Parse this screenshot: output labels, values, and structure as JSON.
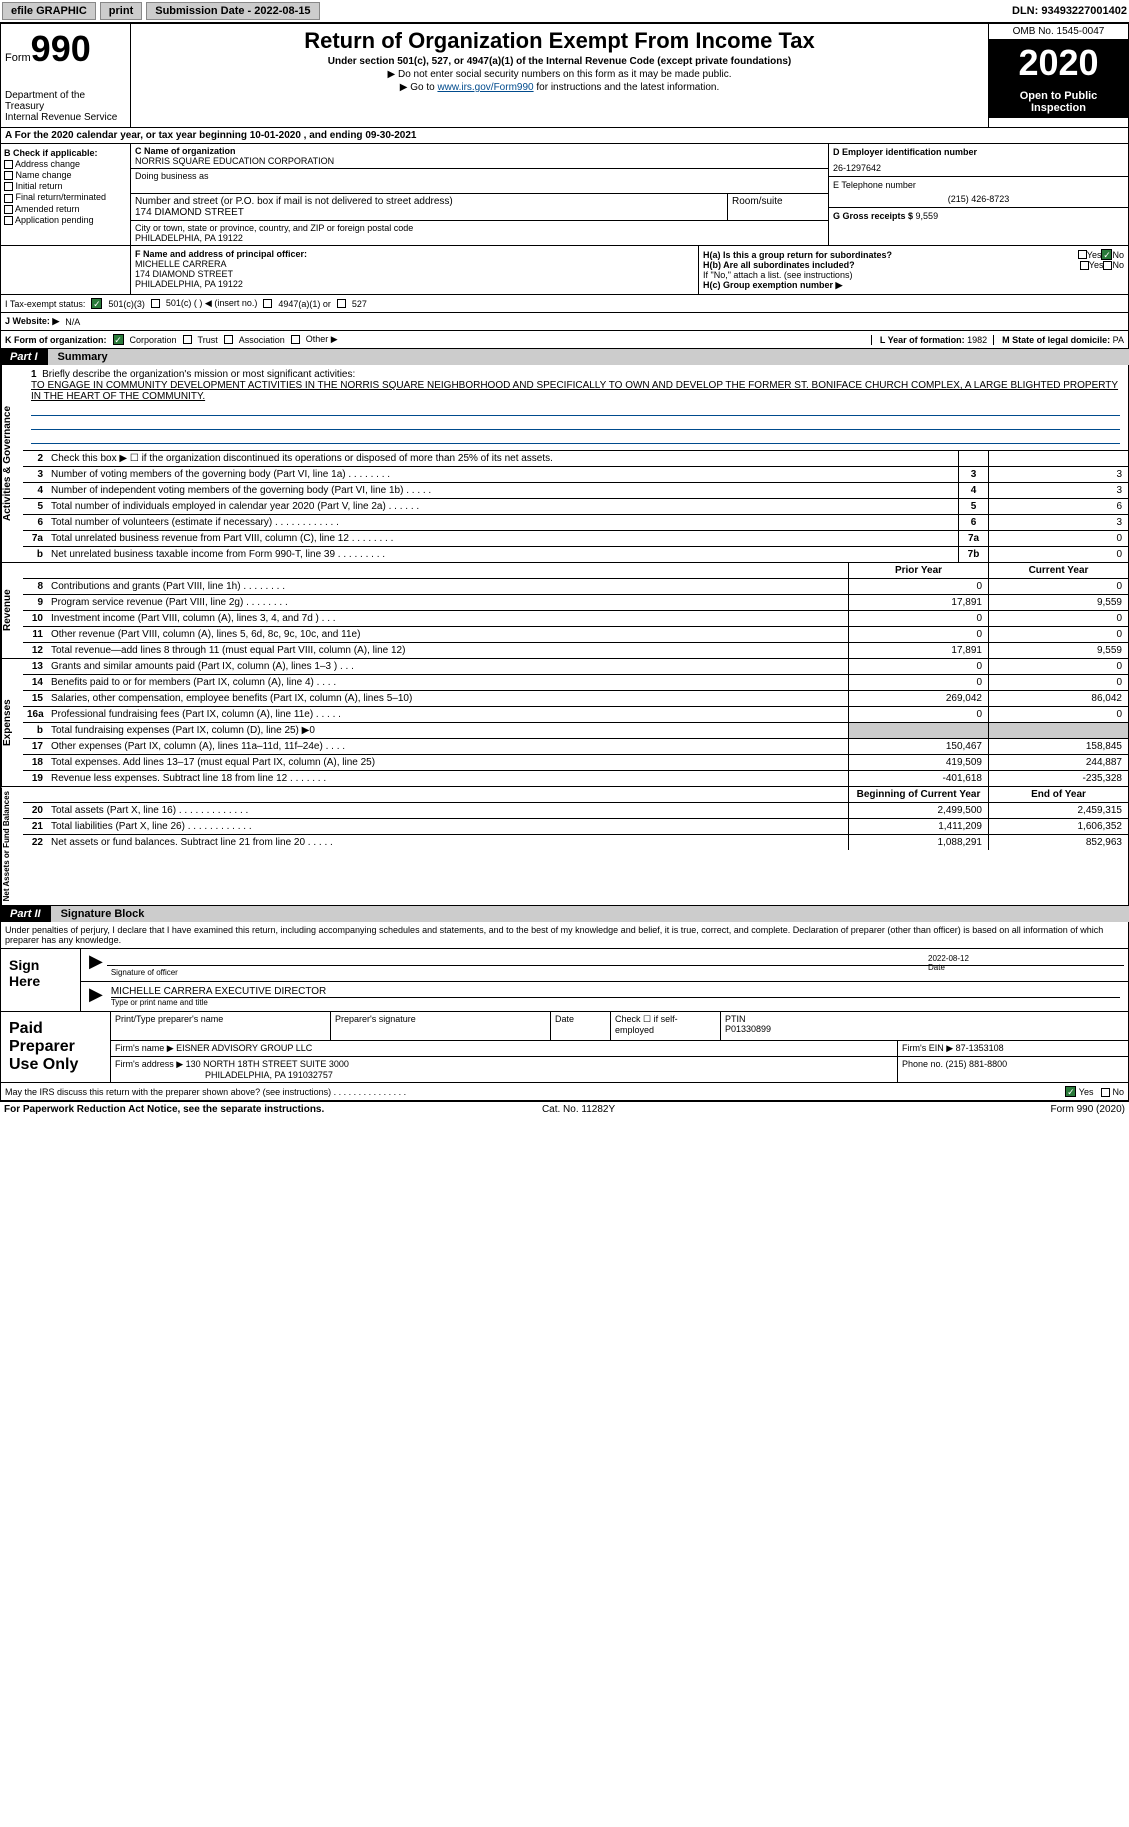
{
  "topbar": {
    "efile": "efile GRAPHIC",
    "print": "print",
    "subdate_label": "Submission Date - ",
    "subdate": "2022-08-15",
    "dln": "DLN: 93493227001402"
  },
  "header": {
    "form_label": "Form",
    "form_num": "990",
    "dept1": "Department of the Treasury",
    "dept2": "Internal Revenue Service",
    "title": "Return of Organization Exempt From Income Tax",
    "sub": "Under section 501(c), 527, or 4947(a)(1) of the Internal Revenue Code (except private foundations)",
    "note1": "▶ Do not enter social security numbers on this form as it may be made public.",
    "note2_pre": "▶ Go to ",
    "note2_link": "www.irs.gov/Form990",
    "note2_post": " for instructions and the latest information.",
    "omb": "OMB No. 1545-0047",
    "year": "2020",
    "open": "Open to Public Inspection"
  },
  "period": {
    "text": "A For the 2020 calendar year, or tax year beginning 10-01-2020    , and ending 09-30-2021"
  },
  "boxB": {
    "label": "B Check if applicable:",
    "o1": "Address change",
    "o2": "Name change",
    "o3": "Initial return",
    "o4": "Final return/terminated",
    "o5": "Amended return",
    "o6": "Application pending"
  },
  "boxC": {
    "name_label": "C Name of organization",
    "name": "NORRIS SQUARE EDUCATION CORPORATION",
    "dba_label": "Doing business as",
    "addr_label": "Number and street (or P.O. box if mail is not delivered to street address)",
    "room_label": "Room/suite",
    "addr": "174 DIAMOND STREET",
    "city_label": "City or town, state or province, country, and ZIP or foreign postal code",
    "city": "PHILADELPHIA, PA  19122"
  },
  "boxD": {
    "ein_label": "D Employer identification number",
    "ein": "26-1297642",
    "phone_label": "E Telephone number",
    "phone": "(215) 426-8723",
    "gross_label": "G Gross receipts $ ",
    "gross": "9,559"
  },
  "boxF": {
    "label": "F  Name and address of principal officer:",
    "name": "MICHELLE CARRERA",
    "addr1": "174 DIAMOND STREET",
    "addr2": "PHILADELPHIA, PA  19122"
  },
  "boxH": {
    "ha": "H(a)  Is this a group return for subordinates?",
    "hb": "H(b)  Are all subordinates included?",
    "hb_note": "If \"No,\" attach a list. (see instructions)",
    "hc": "H(c)  Group exemption number ▶",
    "yes": "Yes",
    "no": "No"
  },
  "rowI": {
    "label": "I   Tax-exempt status:",
    "o1": "501(c)(3)",
    "o2": "501(c) (  ) ◀ (insert no.)",
    "o3": "4947(a)(1) or",
    "o4": "527"
  },
  "rowJ": {
    "label": "J   Website: ▶",
    "val": "N/A"
  },
  "rowK": {
    "label": "K Form of organization:",
    "o1": "Corporation",
    "o2": "Trust",
    "o3": "Association",
    "o4": "Other ▶",
    "l_label": "L Year of formation: ",
    "l_val": "1982",
    "m_label": "M State of legal domicile: ",
    "m_val": "PA"
  },
  "part1": {
    "num": "Part I",
    "title": "Summary"
  },
  "mission": {
    "n": "1",
    "label": "Briefly describe the organization's mission or most significant activities:",
    "text": "TO ENGAGE IN COMMUNITY DEVELOPMENT ACTIVITIES IN THE NORRIS SQUARE NEIGHBORHOOD AND SPECIFICALLY TO OWN AND DEVELOP THE FORMER ST. BONIFACE CHURCH COMPLEX, A LARGE BLIGHTED PROPERTY IN THE HEART OF THE COMMUNITY."
  },
  "gov": {
    "side": "Activities & Governance",
    "rows": [
      {
        "n": "2",
        "d": "Check this box ▶ ☐  if the organization discontinued its operations or disposed of more than 25% of its net assets.",
        "bx": "",
        "v": ""
      },
      {
        "n": "3",
        "d": "Number of voting members of the governing body (Part VI, line 1a)   .    .    .    .    .    .    .    .",
        "bx": "3",
        "v": "3"
      },
      {
        "n": "4",
        "d": "Number of independent voting members of the governing body (Part VI, line 1b)   .    .    .    .    .",
        "bx": "4",
        "v": "3"
      },
      {
        "n": "5",
        "d": "Total number of individuals employed in calendar year 2020 (Part V, line 2a)   .    .    .    .    .    .",
        "bx": "5",
        "v": "6"
      },
      {
        "n": "6",
        "d": "Total number of volunteers (estimate if necessary)   .    .    .    .    .    .    .    .    .    .    .    .",
        "bx": "6",
        "v": "3"
      },
      {
        "n": "7a",
        "d": "Total unrelated business revenue from Part VIII, column (C), line 12   .    .    .    .    .    .    .    .",
        "bx": "7a",
        "v": "0"
      },
      {
        "n": "b",
        "d": "Net unrelated business taxable income from Form 990-T, line 39   .    .    .    .    .    .    .    .    .",
        "bx": "7b",
        "v": "0"
      }
    ]
  },
  "cols": {
    "py": "Prior Year",
    "cy": "Current Year",
    "boy": "Beginning of Current Year",
    "eoy": "End of Year"
  },
  "rev": {
    "side": "Revenue",
    "rows": [
      {
        "n": "8",
        "d": "Contributions and grants (Part VIII, line 1h)   .    .    .    .    .    .    .    .",
        "py": "0",
        "cy": "0"
      },
      {
        "n": "9",
        "d": "Program service revenue (Part VIII, line 2g)   .    .    .    .    .    .    .    .",
        "py": "17,891",
        "cy": "9,559"
      },
      {
        "n": "10",
        "d": "Investment income (Part VIII, column (A), lines 3, 4, and 7d )   .    .    .",
        "py": "0",
        "cy": "0"
      },
      {
        "n": "11",
        "d": "Other revenue (Part VIII, column (A), lines 5, 6d, 8c, 9c, 10c, and 11e)",
        "py": "0",
        "cy": "0"
      },
      {
        "n": "12",
        "d": "Total revenue—add lines 8 through 11 (must equal Part VIII, column (A), line 12)",
        "py": "17,891",
        "cy": "9,559"
      }
    ]
  },
  "exp": {
    "side": "Expenses",
    "rows": [
      {
        "n": "13",
        "d": "Grants and similar amounts paid (Part IX, column (A), lines 1–3 )   .    .    .",
        "py": "0",
        "cy": "0"
      },
      {
        "n": "14",
        "d": "Benefits paid to or for members (Part IX, column (A), line 4)   .    .    .    .",
        "py": "0",
        "cy": "0"
      },
      {
        "n": "15",
        "d": "Salaries, other compensation, employee benefits (Part IX, column (A), lines 5–10)",
        "py": "269,042",
        "cy": "86,042"
      },
      {
        "n": "16a",
        "d": "Professional fundraising fees (Part IX, column (A), line 11e)   .    .    .    .    .",
        "py": "0",
        "cy": "0"
      },
      {
        "n": "b",
        "d": "Total fundraising expenses (Part IX, column (D), line 25) ▶0",
        "py": "grey",
        "cy": "grey"
      },
      {
        "n": "17",
        "d": "Other expenses (Part IX, column (A), lines 11a–11d, 11f–24e)   .    .    .    .",
        "py": "150,467",
        "cy": "158,845"
      },
      {
        "n": "18",
        "d": "Total expenses. Add lines 13–17 (must equal Part IX, column (A), line 25)",
        "py": "419,509",
        "cy": "244,887"
      },
      {
        "n": "19",
        "d": "Revenue less expenses. Subtract line 18 from line 12   .    .    .    .    .    .    .",
        "py": "-401,618",
        "cy": "-235,328"
      }
    ]
  },
  "net": {
    "side": "Net Assets or Fund Balances",
    "rows": [
      {
        "n": "20",
        "d": "Total assets (Part X, line 16)   .    .    .    .    .    .    .    .    .    .    .    .    .",
        "py": "2,499,500",
        "cy": "2,459,315"
      },
      {
        "n": "21",
        "d": "Total liabilities (Part X, line 26)   .    .    .    .    .    .    .    .    .    .    .    .",
        "py": "1,411,209",
        "cy": "1,606,352"
      },
      {
        "n": "22",
        "d": "Net assets or fund balances. Subtract line 21 from line 20   .    .    .    .    .",
        "py": "1,088,291",
        "cy": "852,963"
      }
    ]
  },
  "part2": {
    "num": "Part II",
    "title": "Signature Block"
  },
  "penalties": "Under penalties of perjury, I declare that I have examined this return, including accompanying schedules and statements, and to the best of my knowledge and belief, it is true, correct, and complete. Declaration of preparer (other than officer) is based on all information of which preparer has any knowledge.",
  "sign": {
    "here": "Sign Here",
    "sig_label": "Signature of officer",
    "date_label": "Date",
    "date": "2022-08-12",
    "name": "MICHELLE CARRERA  EXECUTIVE DIRECTOR",
    "name_label": "Type or print name and title"
  },
  "prep": {
    "label": "Paid Preparer Use Only",
    "c1": "Print/Type preparer's name",
    "c2": "Preparer's signature",
    "c3": "Date",
    "c4": "Check ☐ if self-employed",
    "c5l": "PTIN",
    "c5": "P01330899",
    "firm_l": "Firm's name    ▶ ",
    "firm": "EISNER ADVISORY GROUP LLC",
    "ein_l": "Firm's EIN ▶ ",
    "ein": "87-1353108",
    "addr_l": "Firm's address ▶ ",
    "addr1": "130 NORTH 18TH STREET SUITE 3000",
    "addr2": "PHILADELPHIA, PA  191032757",
    "phone_l": "Phone no. ",
    "phone": "(215) 881-8800"
  },
  "discuss": {
    "q": "May the IRS discuss this return with the preparer shown above? (see instructions)   .    .    .    .    .    .    .    .    .    .    .    .    .    .    .",
    "yes": "Yes",
    "no": "No"
  },
  "footer": {
    "l": "For Paperwork Reduction Act Notice, see the separate instructions.",
    "m": "Cat. No. 11282Y",
    "r": "Form 990 (2020)"
  }
}
